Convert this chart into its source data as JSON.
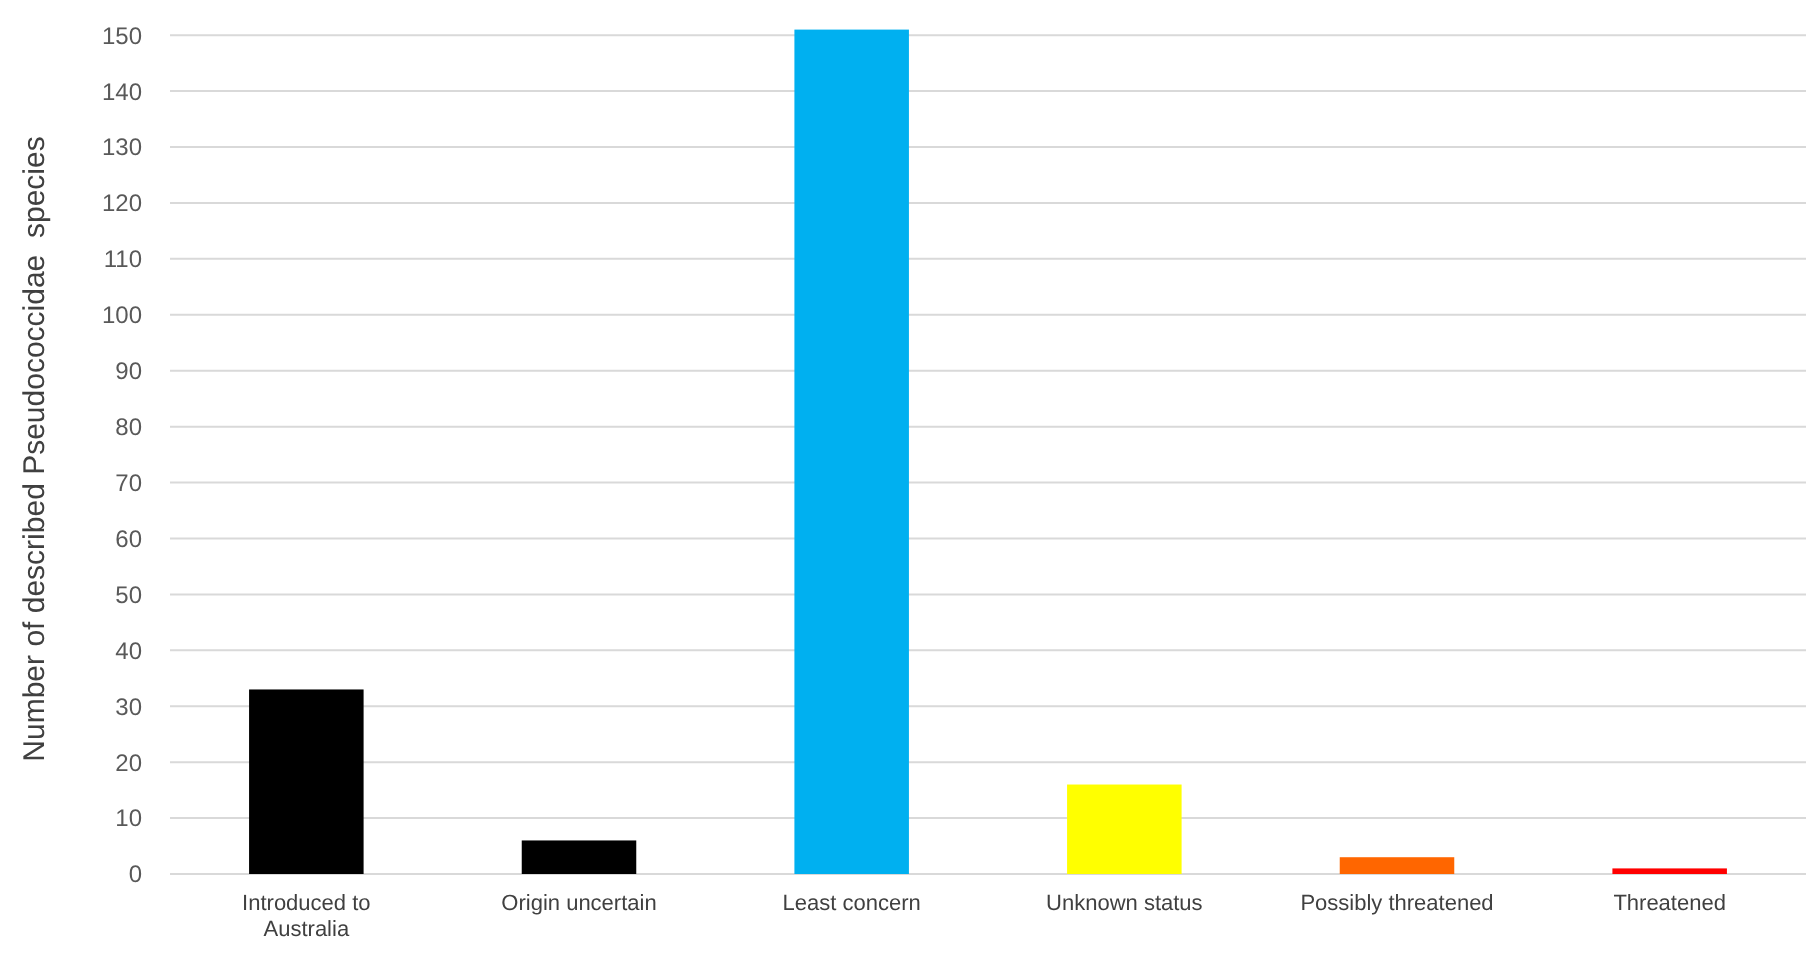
{
  "chart_data": {
    "type": "bar",
    "ylabel": "Number of described Pseudococcidae  species",
    "categories": [
      "Introduced to Australia",
      "Origin uncertain",
      "Least concern",
      "Unknown status",
      "Possibly threatened",
      "Threatened"
    ],
    "values": [
      33,
      6,
      151,
      16,
      3,
      1
    ],
    "colors": [
      "#000000",
      "#000000",
      "#00b0f0",
      "#ffff00",
      "#ff6600",
      "#ff0000"
    ],
    "ylim": [
      0,
      152
    ],
    "yticks": [
      0,
      10,
      20,
      30,
      40,
      50,
      60,
      70,
      80,
      90,
      100,
      110,
      120,
      130,
      140,
      150
    ],
    "grid": "y"
  }
}
